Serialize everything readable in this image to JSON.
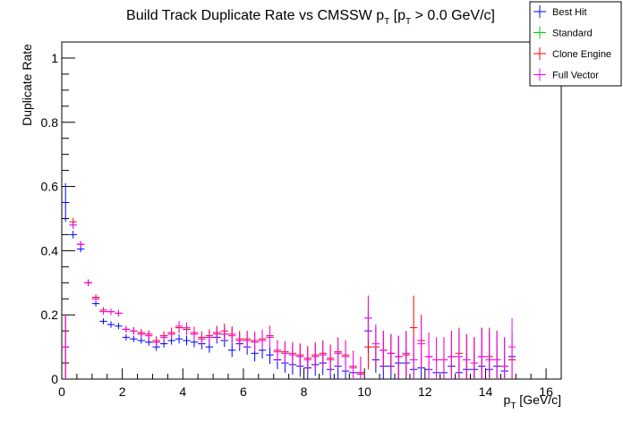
{
  "chart_data": {
    "type": "scatter",
    "title": {
      "pre": "Build Track Duplicate Rate vs CMSSW p",
      "sub1": "T",
      "mid": " [p",
      "sub2": "T",
      "post": " > 0.0 GeV/c]"
    },
    "xlabel": {
      "main": "p",
      "sub": "T",
      "unit": " [GeV/c]"
    },
    "ylabel": "Duplicate Rate",
    "xlim": [
      0,
      16.5
    ],
    "ylim": [
      0,
      1.05
    ],
    "x_ticks": [
      "0",
      "2",
      "4",
      "6",
      "8",
      "10",
      "12",
      "14",
      "16"
    ],
    "y_ticks": [
      "0",
      "0.2",
      "0.4",
      "0.6",
      "0.8",
      "1"
    ],
    "grid": false,
    "legend_position": "top-right",
    "bin_width": 0.25,
    "series": [
      {
        "name": "Best Hit",
        "color": "#0000ff",
        "x": [
          0.125,
          0.375,
          0.625,
          0.875,
          1.125,
          1.375,
          1.625,
          1.875,
          2.125,
          2.375,
          2.625,
          2.875,
          3.125,
          3.375,
          3.625,
          3.875,
          4.125,
          4.375,
          4.625,
          4.875,
          5.125,
          5.375,
          5.625,
          5.875,
          6.125,
          6.375,
          6.625,
          6.875,
          7.125,
          7.375,
          7.625,
          7.875,
          8.125,
          8.375,
          8.625,
          8.875,
          9.125,
          9.375,
          9.625,
          9.875,
          10.125,
          10.375,
          10.625,
          10.875,
          11.125,
          11.375,
          11.625,
          11.875,
          12.125,
          12.375,
          12.625,
          12.875,
          13.125,
          13.375,
          13.625,
          13.875,
          14.125,
          14.375,
          14.625,
          14.875
        ],
        "y": [
          0.55,
          0.45,
          0.405,
          0.3,
          0.235,
          0.18,
          0.17,
          0.165,
          0.13,
          0.125,
          0.12,
          0.115,
          0.1,
          0.11,
          0.12,
          0.125,
          0.12,
          0.115,
          0.11,
          0.1,
          0.13,
          0.12,
          0.09,
          0.11,
          0.1,
          0.08,
          0.09,
          0.075,
          0.06,
          0.05,
          0.045,
          0.04,
          0.035,
          0.045,
          0.05,
          0.03,
          0.04,
          0.025,
          0.02,
          0.02,
          0.15,
          0.06,
          0.04,
          0.04,
          0.05,
          0.05,
          0.03,
          0.035,
          0.03,
          0.02,
          0.02,
          0.04,
          0.02,
          0.03,
          0.03,
          0.04,
          0.03,
          0.04,
          0.025,
          0.07
        ],
        "err": [
          0.06,
          0.012,
          0.01,
          0.01,
          0.009,
          0.009,
          0.01,
          0.01,
          0.01,
          0.01,
          0.01,
          0.011,
          0.012,
          0.012,
          0.013,
          0.014,
          0.015,
          0.016,
          0.017,
          0.018,
          0.019,
          0.02,
          0.021,
          0.022,
          0.024,
          0.025,
          0.026,
          0.028,
          0.029,
          0.03,
          0.031,
          0.033,
          0.034,
          0.035,
          0.037,
          0.038,
          0.04,
          0.041,
          0.043,
          0.045,
          0.07,
          0.04,
          0.045,
          0.045,
          0.05,
          0.05,
          0.045,
          0.05,
          0.05,
          0.045,
          0.045,
          0.05,
          0.045,
          0.05,
          0.05,
          0.06,
          0.05,
          0.06,
          0.05,
          0.07
        ]
      },
      {
        "name": "Standard",
        "color": "#00cc00",
        "x": [
          0.125,
          0.375,
          0.625,
          0.875,
          1.125,
          1.375,
          1.625,
          1.875,
          2.125,
          2.375,
          2.625,
          2.875,
          3.125,
          3.375,
          3.625,
          3.875,
          4.125,
          4.375,
          4.625,
          4.875,
          5.125,
          5.375,
          5.625,
          5.875,
          6.125,
          6.375,
          6.625,
          6.875,
          7.125,
          7.375,
          7.625,
          7.875,
          8.125,
          8.375,
          8.625,
          8.875,
          9.125,
          9.375,
          9.625,
          9.875,
          10.125,
          10.375,
          10.625,
          10.875,
          11.125,
          11.375,
          11.625,
          11.875,
          12.125,
          12.375,
          12.625,
          12.875,
          13.125,
          13.375,
          13.625,
          13.875,
          14.125,
          14.375,
          14.625,
          14.875
        ],
        "y": [
          0.1,
          0.48,
          0.42,
          0.3,
          0.25,
          0.21,
          0.21,
          0.205,
          0.155,
          0.15,
          0.14,
          0.135,
          0.115,
          0.13,
          0.14,
          0.16,
          0.155,
          0.14,
          0.125,
          0.13,
          0.14,
          0.14,
          0.135,
          0.12,
          0.12,
          0.115,
          0.12,
          0.13,
          0.085,
          0.08,
          0.075,
          0.07,
          0.06,
          0.07,
          0.075,
          0.06,
          0.08,
          0.07,
          0.035,
          0.015,
          0.19,
          0.11,
          0.09,
          0.08,
          0.07,
          0.08,
          0.06,
          0.11,
          0.07,
          0.06,
          0.06,
          0.07,
          0.07,
          0.06,
          0.05,
          0.07,
          0.06,
          0.06,
          0.04,
          0.06
        ],
        "err": [
          0.1,
          0.012,
          0.01,
          0.01,
          0.009,
          0.009,
          0.01,
          0.01,
          0.01,
          0.011,
          0.011,
          0.012,
          0.013,
          0.014,
          0.015,
          0.016,
          0.017,
          0.018,
          0.019,
          0.02,
          0.021,
          0.023,
          0.024,
          0.025,
          0.026,
          0.028,
          0.029,
          0.031,
          0.032,
          0.033,
          0.035,
          0.036,
          0.038,
          0.04,
          0.041,
          0.043,
          0.045,
          0.046,
          0.048,
          0.05,
          0.07,
          0.06,
          0.06,
          0.06,
          0.065,
          0.07,
          0.07,
          0.08,
          0.075,
          0.07,
          0.07,
          0.08,
          0.08,
          0.08,
          0.08,
          0.09,
          0.09,
          0.09,
          0.09,
          0.09
        ]
      },
      {
        "name": "Clone Engine",
        "color": "#ff0000",
        "x": [
          0.125,
          0.375,
          0.625,
          0.875,
          1.125,
          1.375,
          1.625,
          1.875,
          2.125,
          2.375,
          2.625,
          2.875,
          3.125,
          3.375,
          3.625,
          3.875,
          4.125,
          4.375,
          4.625,
          4.875,
          5.125,
          5.375,
          5.625,
          5.875,
          6.125,
          6.375,
          6.625,
          6.875,
          7.125,
          7.375,
          7.625,
          7.875,
          8.125,
          8.375,
          8.625,
          8.875,
          9.125,
          9.375,
          9.625,
          9.875,
          10.125,
          10.375,
          10.625,
          10.875,
          11.125,
          11.375,
          11.625,
          11.875,
          12.125,
          12.375,
          12.625,
          12.875,
          13.125,
          13.375,
          13.625,
          13.875,
          14.125,
          14.375,
          14.625,
          14.875
        ],
        "y": [
          0.1,
          0.49,
          0.42,
          0.3,
          0.255,
          0.215,
          0.21,
          0.205,
          0.155,
          0.15,
          0.145,
          0.14,
          0.12,
          0.135,
          0.145,
          0.16,
          0.155,
          0.145,
          0.13,
          0.135,
          0.145,
          0.15,
          0.14,
          0.125,
          0.125,
          0.12,
          0.125,
          0.135,
          0.09,
          0.085,
          0.08,
          0.075,
          0.065,
          0.075,
          0.08,
          0.065,
          0.085,
          0.075,
          0.04,
          0.02,
          0.1,
          0.1,
          0.09,
          0.08,
          0.07,
          0.075,
          0.16,
          0.12,
          0.07,
          0.06,
          0.06,
          0.07,
          0.08,
          0.06,
          0.05,
          0.07,
          0.07,
          0.06,
          0.04,
          0.06
        ],
        "err": [
          0.1,
          0.012,
          0.01,
          0.01,
          0.009,
          0.009,
          0.01,
          0.01,
          0.01,
          0.011,
          0.011,
          0.012,
          0.013,
          0.014,
          0.015,
          0.016,
          0.017,
          0.018,
          0.019,
          0.02,
          0.021,
          0.023,
          0.024,
          0.025,
          0.026,
          0.028,
          0.029,
          0.031,
          0.032,
          0.033,
          0.035,
          0.036,
          0.038,
          0.04,
          0.041,
          0.043,
          0.045,
          0.046,
          0.048,
          0.05,
          0.07,
          0.06,
          0.06,
          0.06,
          0.065,
          0.07,
          0.1,
          0.08,
          0.075,
          0.07,
          0.07,
          0.08,
          0.08,
          0.08,
          0.08,
          0.09,
          0.09,
          0.09,
          0.09,
          0.09
        ]
      },
      {
        "name": "Full Vector",
        "color": "#ff00ff",
        "x": [
          0.125,
          0.375,
          0.625,
          0.875,
          1.125,
          1.375,
          1.625,
          1.875,
          2.125,
          2.375,
          2.625,
          2.875,
          3.125,
          3.375,
          3.625,
          3.875,
          4.125,
          4.375,
          4.625,
          4.875,
          5.125,
          5.375,
          5.625,
          5.875,
          6.125,
          6.375,
          6.625,
          6.875,
          7.125,
          7.375,
          7.625,
          7.875,
          8.125,
          8.375,
          8.625,
          8.875,
          9.125,
          9.375,
          9.625,
          9.875,
          10.125,
          10.375,
          10.625,
          10.875,
          11.125,
          11.375,
          11.625,
          11.875,
          12.125,
          12.375,
          12.625,
          12.875,
          13.125,
          13.375,
          13.625,
          13.875,
          14.125,
          14.375,
          14.625,
          14.875
        ],
        "y": [
          0.1,
          0.48,
          0.42,
          0.3,
          0.25,
          0.21,
          0.21,
          0.205,
          0.155,
          0.15,
          0.14,
          0.135,
          0.115,
          0.13,
          0.14,
          0.165,
          0.16,
          0.14,
          0.125,
          0.13,
          0.14,
          0.14,
          0.135,
          0.12,
          0.12,
          0.115,
          0.12,
          0.13,
          0.085,
          0.08,
          0.075,
          0.07,
          0.06,
          0.07,
          0.075,
          0.06,
          0.08,
          0.07,
          0.035,
          0.015,
          0.19,
          0.11,
          0.09,
          0.08,
          0.07,
          0.08,
          0.06,
          0.11,
          0.07,
          0.06,
          0.06,
          0.07,
          0.07,
          0.06,
          0.05,
          0.07,
          0.06,
          0.06,
          0.04,
          0.1
        ],
        "err": [
          0.1,
          0.012,
          0.01,
          0.01,
          0.009,
          0.009,
          0.01,
          0.01,
          0.01,
          0.011,
          0.011,
          0.012,
          0.013,
          0.014,
          0.015,
          0.016,
          0.017,
          0.018,
          0.019,
          0.02,
          0.021,
          0.023,
          0.024,
          0.025,
          0.026,
          0.028,
          0.029,
          0.031,
          0.032,
          0.033,
          0.035,
          0.036,
          0.038,
          0.04,
          0.041,
          0.043,
          0.045,
          0.046,
          0.048,
          0.05,
          0.07,
          0.06,
          0.06,
          0.06,
          0.065,
          0.07,
          0.07,
          0.08,
          0.075,
          0.07,
          0.07,
          0.08,
          0.08,
          0.08,
          0.08,
          0.09,
          0.09,
          0.09,
          0.09,
          0.09
        ]
      }
    ]
  }
}
